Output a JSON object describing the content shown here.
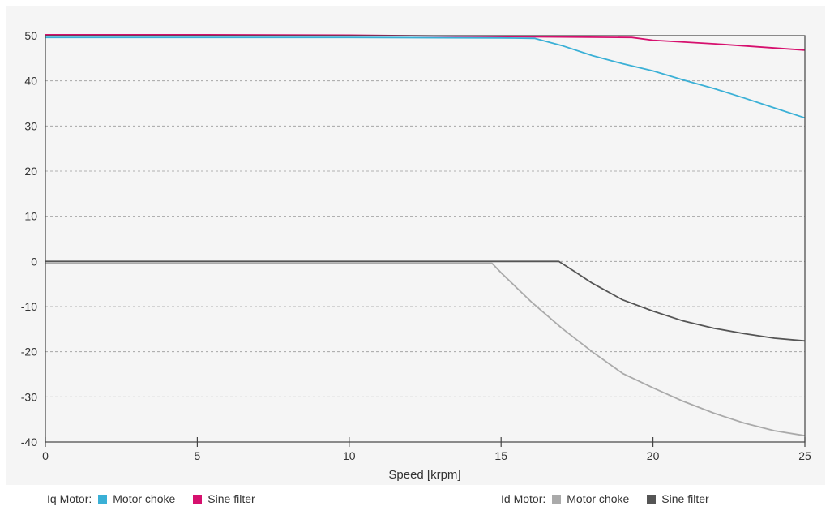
{
  "chart_data": {
    "type": "line",
    "xlabel": "Speed [krpm]",
    "ylabel": "",
    "xlim": [
      0,
      25
    ],
    "ylim": [
      -40,
      50
    ],
    "xticks": [
      "0",
      "5",
      "10",
      "15",
      "20",
      "25"
    ],
    "yticks": [
      "50",
      "40",
      "30",
      "20",
      "10",
      "0",
      "-10",
      "-20",
      "-30",
      "-40"
    ],
    "grid": "horizontal dashed",
    "legend_position": "bottom",
    "legend_groups": [
      {
        "label": "Iq Motor:",
        "entries": [
          {
            "name": "Motor choke",
            "color": "#3ab0d6"
          },
          {
            "name": "Sine filter",
            "color": "#d6106e"
          }
        ]
      },
      {
        "label": "Id Motor:",
        "entries": [
          {
            "name": "Motor choke",
            "color": "#aaaaaa"
          },
          {
            "name": "Sine filter",
            "color": "#555555"
          }
        ]
      }
    ],
    "series": [
      {
        "name": "Iq Motor: Sine filter",
        "color": "#d6106e",
        "x": [
          0,
          5,
          10,
          15,
          19.3,
          20,
          22,
          25
        ],
        "y": [
          50.2,
          50.2,
          50.1,
          49.8,
          49.6,
          49.0,
          48.2,
          46.8
        ]
      },
      {
        "name": "Iq Motor: Motor choke",
        "color": "#3ab0d6",
        "x": [
          0,
          5,
          10,
          15,
          16.1,
          17,
          18,
          19,
          20,
          21,
          22,
          23,
          24,
          25
        ],
        "y": [
          49.6,
          49.6,
          49.6,
          49.5,
          49.4,
          47.8,
          45.6,
          43.8,
          42.2,
          40.2,
          38.3,
          36.2,
          34.0,
          31.8
        ]
      },
      {
        "name": "Id Motor: Sine filter",
        "color": "#555555",
        "x": [
          0,
          5,
          10,
          15,
          16.9,
          17.5,
          18,
          19,
          20,
          21,
          22,
          23,
          24,
          25
        ],
        "y": [
          0,
          0,
          0,
          0,
          0,
          -2.6,
          -4.8,
          -8.5,
          -11.0,
          -13.2,
          -14.8,
          -16.0,
          -17.0,
          -17.6
        ]
      },
      {
        "name": "Id Motor: Motor choke",
        "color": "#aaaaaa",
        "x": [
          0,
          5,
          10,
          14.7,
          15,
          16,
          17,
          18,
          19,
          20,
          21,
          22,
          23,
          24,
          25
        ],
        "y": [
          -0.4,
          -0.4,
          -0.4,
          -0.4,
          -2.5,
          -9.0,
          -14.8,
          -20.0,
          -24.8,
          -28.0,
          -31.0,
          -33.6,
          -35.8,
          -37.5,
          -38.6
        ]
      }
    ]
  }
}
